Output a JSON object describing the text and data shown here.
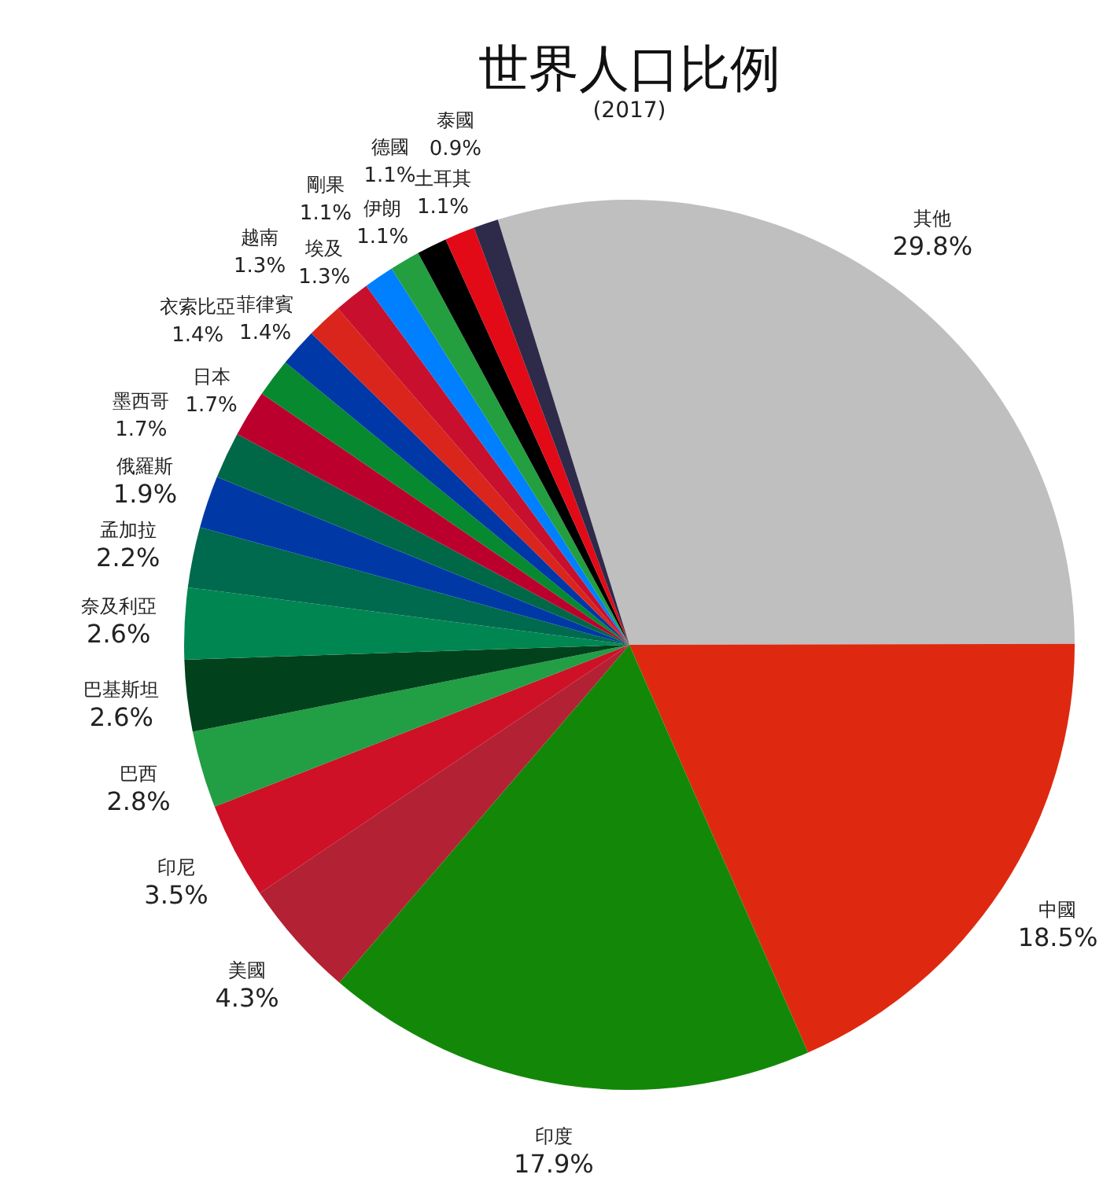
{
  "chart_data": {
    "type": "pie",
    "title": "世界人口比例",
    "subtitle": "(2017)",
    "categories": [
      "其他",
      "中國",
      "印度",
      "美國",
      "印尼",
      "巴西",
      "巴基斯坦",
      "奈及利亞",
      "孟加拉",
      "俄羅斯",
      "墨西哥",
      "日本",
      "衣索比亞",
      "菲律賓",
      "越南",
      "埃及",
      "剛果",
      "伊朗",
      "德國",
      "土耳其",
      "泰國"
    ],
    "values": [
      29.8,
      18.5,
      17.9,
      4.3,
      3.5,
      2.8,
      2.6,
      2.6,
      2.2,
      1.9,
      1.7,
      1.7,
      1.4,
      1.4,
      1.3,
      1.3,
      1.1,
      1.1,
      1.1,
      1.1,
      0.9
    ],
    "value_labels": [
      "29.8%",
      "18.5%",
      "17.9%",
      "4.3%",
      "3.5%",
      "2.8%",
      "2.6%",
      "2.6%",
      "2.2%",
      "1.9%",
      "1.7%",
      "1.7%",
      "1.4%",
      "1.4%",
      "1.3%",
      "1.3%",
      "1.1%",
      "1.1%",
      "1.1%",
      "1.1%",
      "0.9%"
    ],
    "colors": [
      "#bfbfbf",
      "#de2910",
      "#138808",
      "#b22234",
      "#ce1126",
      "#229e45",
      "#01411c",
      "#008751",
      "#006a4e",
      "#0039a6",
      "#006847",
      "#bc002d",
      "#078930",
      "#0038a8",
      "#da251d",
      "#c8102e",
      "#007fff",
      "#239f40",
      "#000000",
      "#e30a17",
      "#2d2a4a"
    ]
  }
}
